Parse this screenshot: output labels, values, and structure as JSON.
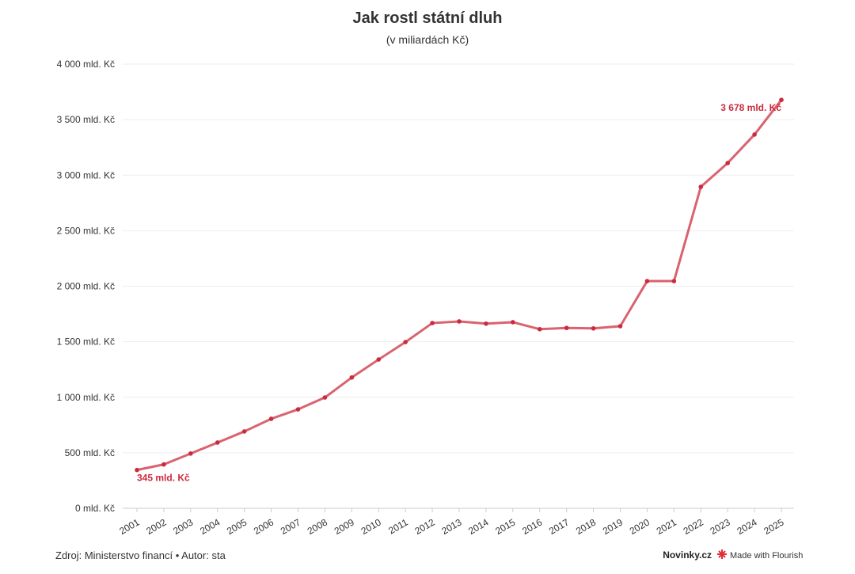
{
  "chart_data": {
    "type": "line",
    "title": "Jak rostl státní dluh",
    "subtitle": "(v miliardách Kč)",
    "categories": [
      "2001",
      "2002",
      "2003",
      "2004",
      "2005",
      "2006",
      "2007",
      "2008",
      "2009",
      "2010",
      "2011",
      "2012",
      "2013",
      "2014",
      "2015",
      "2016",
      "2017",
      "2018",
      "2019",
      "2020",
      "2021",
      "2022",
      "2023",
      "2024",
      "2025"
    ],
    "series": [
      {
        "name": "Státní dluh",
        "color": "#d9636f",
        "marker_color": "#cc2a3e",
        "values": [
          345,
          395,
          493,
          592,
          692,
          806,
          891,
          998,
          1178,
          1340,
          1497,
          1668,
          1683,
          1663,
          1676,
          1613,
          1624,
          1620,
          1640,
          2046,
          2046,
          2895,
          3109,
          3366,
          3678
        ],
        "value_labels": [
          "345 mld. Kč",
          null,
          null,
          null,
          null,
          null,
          null,
          null,
          null,
          null,
          null,
          null,
          null,
          null,
          null,
          null,
          null,
          null,
          null,
          null,
          null,
          null,
          null,
          null,
          "3 678 mld. Kč"
        ]
      }
    ],
    "ylim": [
      0,
      4000
    ],
    "yticks": [
      {
        "value": 0,
        "label": "0 mld. Kč"
      },
      {
        "value": 500,
        "label": "500 mld. Kč"
      },
      {
        "value": 1000,
        "label": "1 000 mld. Kč"
      },
      {
        "value": 1500,
        "label": "1 500 mld. Kč"
      },
      {
        "value": 2000,
        "label": "2 000 mld. Kč"
      },
      {
        "value": 2500,
        "label": "2 500 mld. Kč"
      },
      {
        "value": 3000,
        "label": "3 000 mld. Kč"
      },
      {
        "value": 3500,
        "label": "3 500 mld. Kč"
      },
      {
        "value": 4000,
        "label": "4 000 mld. Kč"
      }
    ],
    "grid": true
  },
  "footer": {
    "source": "Zdroj: Ministerstvo financí • Autor: sta",
    "brand": "Novinky.cz",
    "credit": "Made with Flourish"
  }
}
